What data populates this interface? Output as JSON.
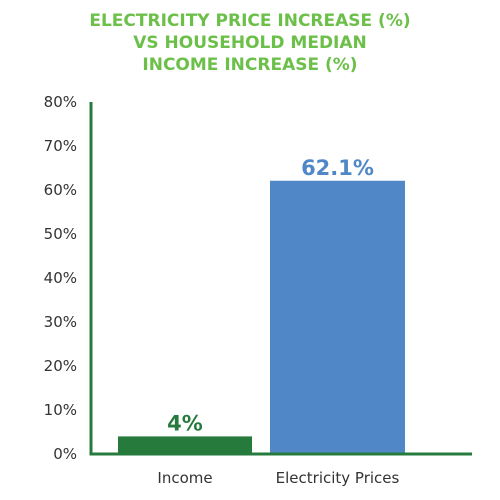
{
  "title_lines": [
    "ELECTRICITY PRICE INCREASE (%)",
    "VS HOUSEHOLD MEDIAN",
    "INCOME INCREASE (%)"
  ],
  "chart_data": {
    "type": "bar",
    "title": "ELECTRICITY PRICE INCREASE (%) VS HOUSEHOLD MEDIAN INCOME INCREASE (%)",
    "categories": [
      "Income",
      "Electricity Prices"
    ],
    "values": [
      4,
      62.1
    ],
    "data_labels": [
      "4%",
      "62.1%"
    ],
    "bar_colors": [
      "#267b3c",
      "#4f87c7"
    ],
    "ylim": [
      0,
      80
    ],
    "yticks": [
      0,
      10,
      20,
      30,
      40,
      50,
      60,
      70,
      80
    ],
    "ytick_labels": [
      "0%",
      "10%",
      "20%",
      "30%",
      "40%",
      "50%",
      "60%",
      "70%",
      "80%"
    ],
    "axis_color": "#267b3c",
    "title_color": "#6cc04a",
    "grid": false,
    "xlabel": "",
    "ylabel": ""
  }
}
